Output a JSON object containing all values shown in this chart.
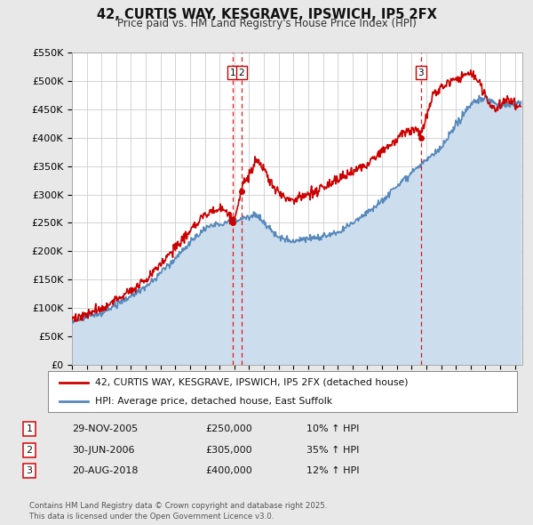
{
  "title": "42, CURTIS WAY, KESGRAVE, IPSWICH, IP5 2FX",
  "subtitle": "Price paid vs. HM Land Registry's House Price Index (HPI)",
  "ylim": [
    0,
    550000
  ],
  "yticks": [
    0,
    50000,
    100000,
    150000,
    200000,
    250000,
    300000,
    350000,
    400000,
    450000,
    500000,
    550000
  ],
  "ytick_labels": [
    "£0",
    "£50K",
    "£100K",
    "£150K",
    "£200K",
    "£250K",
    "£300K",
    "£350K",
    "£400K",
    "£450K",
    "£500K",
    "£550K"
  ],
  "bg_color": "#e8e8e8",
  "plot_bg_color": "#ffffff",
  "red_line_color": "#cc0000",
  "blue_line_color": "#5588bb",
  "blue_fill_color": "#ccdded",
  "vline_color": "#dd0000",
  "vline_style": "--",
  "transaction_markers": [
    {
      "date_num": 2005.91,
      "price": 250000,
      "label": "1"
    },
    {
      "date_num": 2006.49,
      "price": 305000,
      "label": "2"
    },
    {
      "date_num": 2018.64,
      "price": 400000,
      "label": "3"
    }
  ],
  "marker_box_color": "#ffffff",
  "marker_box_edgecolor": "#cc0000",
  "legend_entries": [
    "42, CURTIS WAY, KESGRAVE, IPSWICH, IP5 2FX (detached house)",
    "HPI: Average price, detached house, East Suffolk"
  ],
  "table_rows": [
    [
      "1",
      "29-NOV-2005",
      "£250,000",
      "10% ↑ HPI"
    ],
    [
      "2",
      "30-JUN-2006",
      "£305,000",
      "35% ↑ HPI"
    ],
    [
      "3",
      "20-AUG-2018",
      "£400,000",
      "12% ↑ HPI"
    ]
  ],
  "footer_text": "Contains HM Land Registry data © Crown copyright and database right 2025.\nThis data is licensed under the Open Government Licence v3.0.",
  "xstart": 1995.0,
  "xend": 2025.5
}
